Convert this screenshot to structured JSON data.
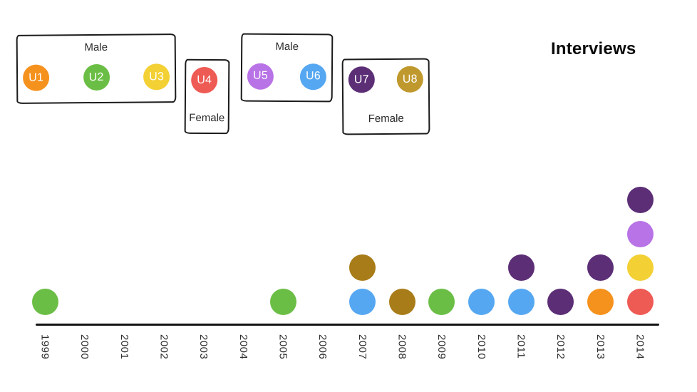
{
  "title": "Interviews",
  "legend": {
    "groups": [
      {
        "label": "Male",
        "users": [
          {
            "id": "U1",
            "color": "#F5921E"
          },
          {
            "id": "U2",
            "color": "#6BBE45"
          },
          {
            "id": "U3",
            "color": "#F3D034"
          }
        ]
      },
      {
        "label": "Female",
        "users": [
          {
            "id": "U4",
            "color": "#EE5A54"
          }
        ]
      },
      {
        "label": "Male",
        "users": [
          {
            "id": "U5",
            "color": "#B873E6"
          },
          {
            "id": "U6",
            "color": "#55A7F2"
          }
        ]
      },
      {
        "label": "Female",
        "users": [
          {
            "id": "U7",
            "color": "#5C2E76"
          },
          {
            "id": "U8",
            "color": "#C0992E"
          }
        ]
      }
    ]
  },
  "chart_data": {
    "type": "scatter",
    "title": "Interviews",
    "xlabel": "",
    "ylabel": "",
    "x_ticks": [
      "1999",
      "2000",
      "2001",
      "2002",
      "2003",
      "2004",
      "2005",
      "2006",
      "2007",
      "2008",
      "2009",
      "2010",
      "2011",
      "2012",
      "2013",
      "2014"
    ],
    "x_range": [
      1999,
      2014
    ],
    "grid": false,
    "legend_position": "top-left",
    "description": "Timeline of interviews; each dot is one interview in that year, colored by user (dots stacked bottom-to-top).",
    "events": [
      {
        "year": 1999,
        "dots": [
          {
            "user": "U2",
            "color": "#6BBE45"
          }
        ]
      },
      {
        "year": 2005,
        "dots": [
          {
            "user": "U2",
            "color": "#6BBE45"
          }
        ]
      },
      {
        "year": 2007,
        "dots": [
          {
            "user": "U6",
            "color": "#55A7F2"
          },
          {
            "user": "U8",
            "color": "#A87C18"
          }
        ]
      },
      {
        "year": 2008,
        "dots": [
          {
            "user": "U8",
            "color": "#A87C18"
          }
        ]
      },
      {
        "year": 2009,
        "dots": [
          {
            "user": "U2",
            "color": "#6BBE45"
          }
        ]
      },
      {
        "year": 2010,
        "dots": [
          {
            "user": "U6",
            "color": "#55A7F2"
          }
        ]
      },
      {
        "year": 2011,
        "dots": [
          {
            "user": "U6",
            "color": "#55A7F2"
          },
          {
            "user": "U7",
            "color": "#5C2E76"
          }
        ]
      },
      {
        "year": 2012,
        "dots": [
          {
            "user": "U7",
            "color": "#5C2E76"
          }
        ]
      },
      {
        "year": 2013,
        "dots": [
          {
            "user": "U1",
            "color": "#F5921E"
          },
          {
            "user": "U7",
            "color": "#5C2E76"
          }
        ]
      },
      {
        "year": 2014,
        "dots": [
          {
            "user": "U4",
            "color": "#EE5A54"
          },
          {
            "user": "U3",
            "color": "#F3D034"
          },
          {
            "user": "U5",
            "color": "#B873E6"
          },
          {
            "user": "U7",
            "color": "#5C2E76"
          }
        ]
      }
    ],
    "interview_counts_per_user": {
      "U1": 1,
      "U2": 3,
      "U3": 1,
      "U4": 1,
      "U5": 1,
      "U6": 3,
      "U7": 4,
      "U8": 2
    }
  }
}
